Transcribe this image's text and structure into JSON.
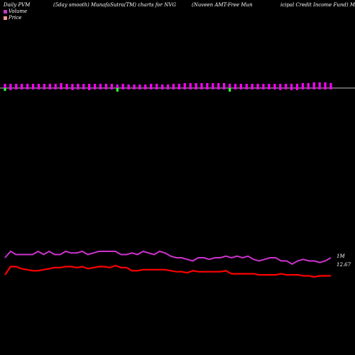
{
  "header": {
    "t1": "Daily PVM",
    "t2": "(5day smooth) MunafaSutra(TM) charts for NVG",
    "t3": "(Nuveen AMT-Free  Mun",
    "t4": "icipal Credit Income  Fund) Muni",
    "t5": "icipal Credit Income  Fund) Muni"
  },
  "legend": {
    "volume_label": "Volume",
    "price_label": "Price",
    "volume_color": "#cc33cc",
    "price_color": "#ff9999"
  },
  "colors": {
    "background": "#000000",
    "baseline": "#ffffff",
    "volume_up": "#ff00ff",
    "volume_down": "#33ff33",
    "price_line": "#ff0000",
    "volume_line": "#cc33cc"
  },
  "chart_data": {
    "type": "bar+line",
    "grid": false,
    "volume_bars": {
      "heights_above": [
        5,
        5,
        5,
        5,
        5,
        5,
        5,
        5,
        5,
        5,
        5,
        5,
        5,
        5,
        5,
        5,
        5,
        5,
        5,
        5,
        5,
        5,
        5,
        5,
        5,
        5,
        5,
        5,
        5,
        5,
        5,
        5,
        5,
        5,
        5,
        5,
        5,
        5,
        5,
        5,
        5,
        5,
        5,
        5,
        5,
        5,
        5,
        5,
        5,
        5,
        5,
        5,
        5,
        5,
        5,
        5,
        5,
        5,
        5,
        5,
        5,
        5,
        5,
        5,
        5,
        5,
        5,
        5,
        5,
        5,
        5,
        5,
        5,
        5,
        5,
        5,
        5,
        5,
        5,
        5,
        5,
        5,
        5,
        5,
        5,
        5,
        5,
        5,
        5,
        5,
        5,
        5,
        5,
        5,
        5,
        5
      ],
      "heights_below": [
        2,
        5,
        2,
        2,
        2,
        2,
        2,
        2,
        2,
        2,
        2,
        2,
        2,
        2,
        2,
        2,
        2,
        2,
        2,
        2,
        2,
        2,
        2,
        2,
        2,
        2,
        2,
        2,
        2,
        2,
        2,
        2,
        2,
        2,
        2,
        2,
        2,
        2,
        2,
        2,
        2,
        2,
        2,
        2,
        2,
        2,
        2,
        2,
        2,
        2,
        2,
        2,
        2,
        2,
        2,
        2,
        2,
        2,
        2,
        2,
        2,
        2,
        2,
        2,
        2,
        2,
        2,
        2,
        2,
        2,
        2,
        2,
        2,
        2,
        2,
        2,
        2,
        2,
        2,
        2,
        2,
        2,
        2,
        2,
        2,
        2,
        2,
        2,
        2,
        2,
        2,
        2,
        2,
        2,
        2,
        2
      ],
      "up": [
        [
          1,
          4
        ],
        [
          1,
          3
        ],
        [
          1,
          3
        ],
        [
          1,
          3
        ],
        [
          1,
          3
        ],
        [
          1,
          3
        ],
        [
          1,
          3
        ],
        [
          1,
          3
        ],
        [
          1,
          3
        ],
        [
          1,
          3
        ],
        [
          1,
          3
        ],
        [
          1,
          3
        ],
        [
          1,
          3
        ],
        [
          1,
          3
        ],
        [
          1,
          3
        ],
        [
          1,
          3
        ],
        [
          1,
          3
        ],
        [
          1,
          3
        ],
        [
          1,
          3
        ],
        [
          1,
          3
        ],
        [
          1,
          3
        ],
        [
          1,
          3
        ],
        [
          1,
          3
        ],
        [
          1,
          3
        ],
        [
          1,
          3
        ],
        [
          1,
          3
        ],
        [
          1,
          3
        ],
        [
          1,
          3
        ],
        [
          1,
          3
        ],
        [
          1,
          3
        ],
        [
          1,
          3
        ],
        [
          1,
          3
        ],
        [
          1,
          3
        ],
        [
          1,
          3
        ],
        [
          1,
          3
        ],
        [
          1,
          3
        ],
        [
          1,
          3
        ],
        [
          1,
          3
        ],
        [
          1,
          3
        ],
        [
          1,
          3
        ],
        [
          1,
          3
        ],
        [
          1,
          3
        ],
        [
          1,
          3
        ],
        [
          1,
          3
        ],
        [
          1,
          3
        ],
        [
          1,
          3
        ],
        [
          1,
          3
        ],
        [
          1,
          3
        ],
        [
          1,
          3
        ],
        [
          1,
          3
        ],
        [
          1,
          3
        ],
        [
          1,
          3
        ],
        [
          1,
          3
        ],
        [
          1,
          3
        ],
        [
          1,
          3
        ],
        [
          1,
          3
        ],
        [
          1,
          3
        ],
        [
          1,
          3
        ],
        [
          1,
          3
        ],
        [
          1,
          3
        ],
        [
          1,
          3
        ],
        [
          1,
          3
        ],
        [
          1,
          3
        ],
        [
          1,
          3
        ],
        [
          1,
          3
        ],
        [
          1,
          3
        ],
        [
          1,
          3
        ],
        [
          1,
          3
        ],
        [
          1,
          3
        ],
        [
          1,
          3
        ],
        [
          1,
          3
        ],
        [
          1,
          3
        ],
        [
          1,
          3
        ],
        [
          1,
          3
        ],
        [
          1,
          3
        ],
        [
          1,
          3
        ],
        [
          1,
          3
        ],
        [
          1,
          3
        ],
        [
          1,
          3
        ],
        [
          1,
          3
        ],
        [
          1,
          3
        ],
        [
          1,
          3
        ],
        [
          1,
          3
        ],
        [
          1,
          3
        ],
        [
          1,
          3
        ],
        [
          1,
          3
        ],
        [
          1,
          3
        ],
        [
          1,
          3
        ],
        [
          1,
          3
        ],
        [
          1,
          3
        ],
        [
          1,
          3
        ],
        [
          1,
          3
        ],
        [
          1,
          3
        ],
        [
          1,
          3
        ],
        [
          1,
          3
        ],
        [
          1,
          3
        ]
      ]
    },
    "volume_series": [
      {
        "v": 6,
        "d": 4
      },
      {
        "v": 6,
        "d": 3
      },
      {
        "v": 6,
        "d": 2
      },
      {
        "v": 6,
        "d": 2
      },
      {
        "v": 6,
        "d": 2
      },
      {
        "v": 6,
        "d": 2
      },
      {
        "v": 6,
        "d": 2
      },
      {
        "v": 6,
        "d": 2
      },
      {
        "v": 6,
        "d": 2
      },
      {
        "v": 6,
        "d": 2
      },
      {
        "v": 7,
        "d": 2
      },
      {
        "v": 6,
        "d": 2
      },
      {
        "v": 6,
        "d": 3
      },
      {
        "v": 6,
        "d": 2
      },
      {
        "v": 6,
        "d": 2
      },
      {
        "v": 6,
        "d": 3
      },
      {
        "v": 6,
        "d": 2
      },
      {
        "v": 6,
        "d": 2
      },
      {
        "v": 6,
        "d": 2
      },
      {
        "v": 6,
        "d": 2
      },
      {
        "v": 5,
        "d": 5
      },
      {
        "v": 6,
        "d": 2
      },
      {
        "v": 5,
        "d": 2
      },
      {
        "v": 5,
        "d": 2
      },
      {
        "v": 5,
        "d": 2
      },
      {
        "v": 5,
        "d": 2
      },
      {
        "v": 6,
        "d": 2
      },
      {
        "v": 6,
        "d": 2
      },
      {
        "v": 5,
        "d": 2
      },
      {
        "v": 5,
        "d": 2
      },
      {
        "v": 6,
        "d": 2
      },
      {
        "v": 6,
        "d": 2
      },
      {
        "v": 7,
        "d": 2
      },
      {
        "v": 7,
        "d": 2
      },
      {
        "v": 7,
        "d": 2
      },
      {
        "v": 7,
        "d": 2
      },
      {
        "v": 7,
        "d": 2
      },
      {
        "v": 7,
        "d": 2
      },
      {
        "v": 7,
        "d": 2
      },
      {
        "v": 7,
        "d": 2
      },
      {
        "v": 6,
        "d": 5
      },
      {
        "v": 6,
        "d": 2
      },
      {
        "v": 6,
        "d": 2
      },
      {
        "v": 6,
        "d": 2
      },
      {
        "v": 6,
        "d": 2
      },
      {
        "v": 6,
        "d": 2
      },
      {
        "v": 6,
        "d": 2
      },
      {
        "v": 6,
        "d": 2
      },
      {
        "v": 6,
        "d": 2
      },
      {
        "v": 6,
        "d": 3
      },
      {
        "v": 6,
        "d": 2
      },
      {
        "v": 6,
        "d": 3
      },
      {
        "v": 6,
        "d": 3
      },
      {
        "v": 7,
        "d": 2
      },
      {
        "v": 7,
        "d": 2
      },
      {
        "v": 8,
        "d": 2
      },
      {
        "v": 8,
        "d": 2
      },
      {
        "v": 8,
        "d": 2
      },
      {
        "v": 7,
        "d": 2
      }
    ],
    "volume_line": [
      9.8,
      10.0,
      9.9,
      9.9,
      9.9,
      9.9,
      10.0,
      9.9,
      10.0,
      9.9,
      9.9,
      10.0,
      9.95,
      9.95,
      10.0,
      9.9,
      9.95,
      10.0,
      10.0,
      10.0,
      10.0,
      9.9,
      9.9,
      9.95,
      9.9,
      10.0,
      9.95,
      9.9,
      10.0,
      9.95,
      9.85,
      9.8,
      9.8,
      9.75,
      9.7,
      9.8,
      9.8,
      9.75,
      9.8,
      9.8,
      9.85,
      9.8,
      9.85,
      9.8,
      9.85,
      9.75,
      9.7,
      9.75,
      9.8,
      9.8,
      9.7,
      9.7,
      9.6,
      9.7,
      9.75,
      9.7,
      9.7,
      9.65,
      9.7,
      9.8
    ],
    "price_line": [
      12.0,
      12.4,
      12.4,
      12.3,
      12.25,
      12.2,
      12.2,
      12.25,
      12.3,
      12.35,
      12.35,
      12.4,
      12.4,
      12.35,
      12.4,
      12.3,
      12.35,
      12.4,
      12.4,
      12.35,
      12.45,
      12.35,
      12.35,
      12.2,
      12.2,
      12.25,
      12.25,
      12.25,
      12.25,
      12.25,
      12.2,
      12.15,
      12.15,
      12.1,
      12.2,
      12.15,
      12.15,
      12.15,
      12.15,
      12.15,
      12.2,
      12.05,
      12.05,
      12.05,
      12.05,
      12.05,
      12.0,
      12.0,
      12.0,
      12.0,
      12.05,
      12.0,
      12.0,
      12.0,
      11.95,
      11.95,
      11.9,
      11.95,
      11.95,
      11.95
    ],
    "labels": {
      "volume_axis": "1M",
      "price_axis": "12.67"
    }
  }
}
